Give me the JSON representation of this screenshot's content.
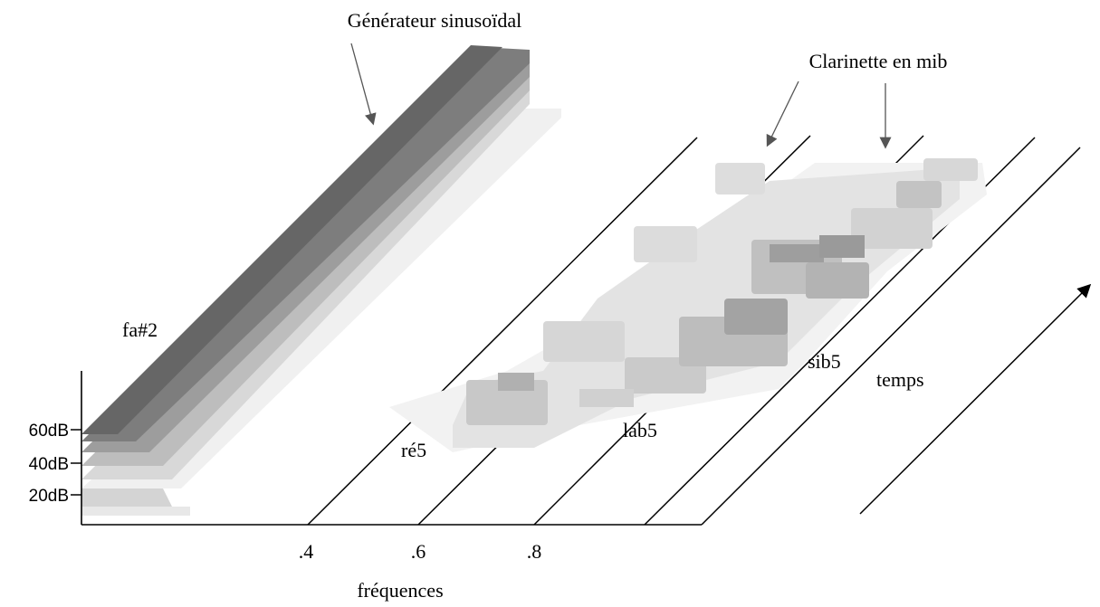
{
  "title": "Générateur sinusoïdal",
  "annotation": "Clarinette en mib",
  "notes": {
    "fundamental": "fa#2",
    "n1": "ré5",
    "n2": "lab5",
    "n3": "sib5"
  },
  "axes": {
    "time_label": "temps",
    "frequency_label": "fréquences",
    "level_ticks": [
      "60dB",
      "40dB",
      "20dB"
    ],
    "frequency_ticks": [
      ".4",
      ".6",
      ".8"
    ]
  }
}
